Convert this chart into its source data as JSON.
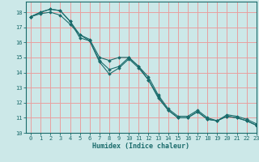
{
  "title": "",
  "xlabel": "Humidex (Indice chaleur)",
  "background_color": "#cce8e8",
  "grid_color": "#e8a0a0",
  "line_color": "#1a6b6b",
  "xlim": [
    -0.5,
    23
  ],
  "ylim": [
    10,
    18.7
  ],
  "xticks": [
    0,
    1,
    2,
    3,
    4,
    5,
    6,
    7,
    8,
    9,
    10,
    11,
    12,
    13,
    14,
    15,
    16,
    17,
    18,
    19,
    20,
    21,
    22,
    23
  ],
  "yticks": [
    10,
    11,
    12,
    13,
    14,
    15,
    16,
    17,
    18
  ],
  "series": [
    [
      17.7,
      18.0,
      18.2,
      18.1,
      17.4,
      16.3,
      16.1,
      14.7,
      13.9,
      14.3,
      14.9,
      14.3,
      13.5,
      12.3,
      11.5,
      11.0,
      11.0,
      11.4,
      10.9,
      10.8,
      11.1,
      11.0,
      10.8,
      10.5
    ],
    [
      17.7,
      18.0,
      18.2,
      18.1,
      17.4,
      16.5,
      16.2,
      15.0,
      14.8,
      15.0,
      15.0,
      14.4,
      13.7,
      12.5,
      11.6,
      11.1,
      11.1,
      11.5,
      11.0,
      10.8,
      11.2,
      11.1,
      10.9,
      10.6
    ],
    [
      17.7,
      17.9,
      18.0,
      17.8,
      17.2,
      16.5,
      16.1,
      14.8,
      14.2,
      14.4,
      15.0,
      14.4,
      13.5,
      12.4,
      11.5,
      11.0,
      11.0,
      11.4,
      10.9,
      10.8,
      11.1,
      11.0,
      10.8,
      10.5
    ]
  ]
}
